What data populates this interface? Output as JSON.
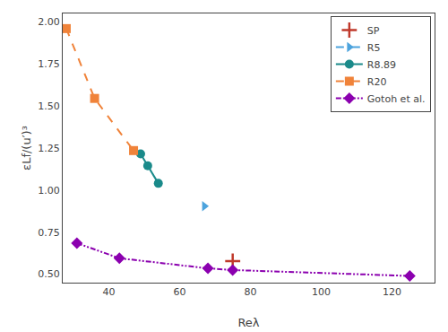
{
  "chart_data": {
    "type": "line",
    "xlabel": "Reλ",
    "ylabel": "εLf/(u′)³",
    "xlim": [
      27,
      132
    ],
    "ylim": [
      0.45,
      2.05
    ],
    "xticks": [
      40,
      60,
      80,
      100,
      120
    ],
    "yticks": [
      {
        "value": 0.5,
        "label": "0.50"
      },
      0.75,
      {
        "value": 1.0,
        "label": "1.00"
      },
      1.25,
      {
        "value": 1.5,
        "label": "1.50"
      },
      1.75,
      {
        "value": 2.0,
        "label": "2.00"
      }
    ],
    "grid": false,
    "legend": "upper right",
    "series": [
      {
        "name": "SP",
        "type": "scatter",
        "color": "#c0392b",
        "marker": "plus",
        "x": [
          75
        ],
        "values": [
          0.578
        ]
      },
      {
        "name": "R5",
        "type": "line",
        "color": "#4ca3dd",
        "marker": "triangle-right",
        "line_style": "dashed",
        "x": [
          67
        ],
        "values": [
          0.905
        ]
      },
      {
        "name": "R8.89",
        "type": "line",
        "color": "#1a8a8a",
        "marker": "circle",
        "line_style": "solid",
        "x": [
          49,
          51,
          54
        ],
        "values": [
          1.215,
          1.145,
          1.04
        ]
      },
      {
        "name": "R20",
        "type": "line",
        "color": "#f0833a",
        "marker": "square",
        "line_style": "dashed",
        "x": [
          28,
          36,
          47
        ],
        "values": [
          1.96,
          1.545,
          1.235
        ]
      },
      {
        "name": "Gotoh et al.",
        "type": "line",
        "color": "#8b00af",
        "marker": "diamond",
        "line_style": "dashdotdot",
        "x": [
          31,
          43,
          68,
          75,
          125
        ],
        "values": [
          0.685,
          0.595,
          0.535,
          0.525,
          0.49
        ]
      }
    ]
  }
}
